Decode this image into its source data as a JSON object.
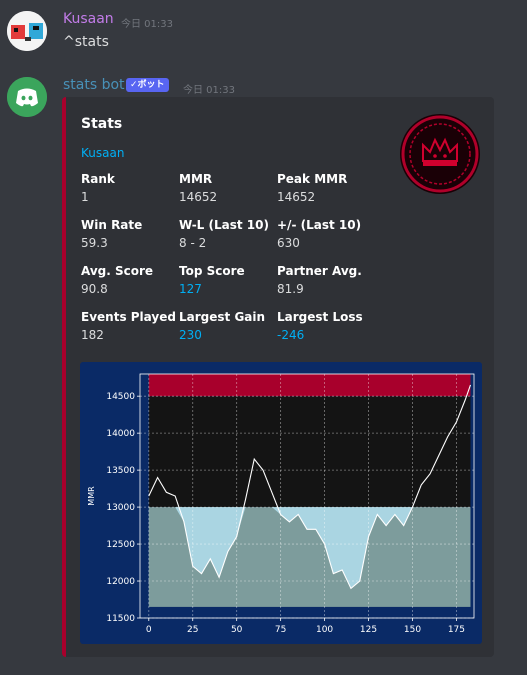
{
  "messages": [
    {
      "username": "Kusaan",
      "timestamp": "今日 01:33",
      "text": "^stats"
    },
    {
      "username": "stats bot",
      "bot_tag": "✓ボット",
      "timestamp": "今日 01:33"
    }
  ],
  "colors": {
    "user1": "#c27ce8",
    "bot": "#4891b8",
    "accent": "#a8002c",
    "link": "#00aff4"
  },
  "embed": {
    "title": "Stats",
    "author": "Kusaan",
    "fields": [
      {
        "name": "Rank",
        "value": "1"
      },
      {
        "name": "MMR",
        "value": "14652"
      },
      {
        "name": "Peak MMR",
        "value": "14652"
      },
      {
        "name": "Win Rate",
        "value": "59.3"
      },
      {
        "name": "W-L (Last 10)",
        "value": "8 - 2"
      },
      {
        "name": "+/- (Last 10)",
        "value": "630"
      },
      {
        "name": "Avg. Score",
        "value": "90.8"
      },
      {
        "name": "Top Score",
        "value": "127"
      },
      {
        "name": "Partner Avg.",
        "value": "81.9"
      },
      {
        "name": "Events Played",
        "value": "182"
      },
      {
        "name": "Largest Gain",
        "value": "230"
      },
      {
        "name": "Largest Loss",
        "value": "-246"
      }
    ]
  },
  "chart_data": {
    "type": "line",
    "title": "",
    "xlabel": "",
    "ylabel": "MMR",
    "xlim": [
      -5,
      185
    ],
    "ylim": [
      11500,
      14800
    ],
    "x_ticks": [
      0,
      25,
      50,
      75,
      100,
      125,
      150,
      175
    ],
    "y_ticks": [
      11500,
      12000,
      12500,
      13000,
      13500,
      14000,
      14500
    ],
    "grid": true,
    "bands": [
      {
        "from": 11650,
        "to": 13000,
        "color": "#7d9c9c"
      },
      {
        "from": 13000,
        "to": 14500,
        "color": "#141414"
      },
      {
        "from": 14500,
        "to": 14800,
        "color": "#a8002c"
      }
    ],
    "fill_color": "#add8e6",
    "line_color": "#ffffff",
    "series": [
      {
        "x": [
          0,
          5,
          10,
          15,
          20,
          25,
          30,
          35,
          40,
          45,
          50,
          55,
          60,
          65,
          70,
          75,
          80,
          85,
          90,
          95,
          100,
          105,
          110,
          115,
          120,
          125,
          130,
          135,
          140,
          145,
          150,
          155,
          160,
          165,
          170,
          175,
          180,
          183
        ],
        "y": [
          13150,
          13400,
          13200,
          13150,
          12800,
          12200,
          12100,
          12300,
          12050,
          12400,
          12600,
          13100,
          13650,
          13500,
          13200,
          12900,
          12800,
          12900,
          12700,
          12700,
          12500,
          12100,
          12150,
          11900,
          12000,
          12600,
          12900,
          12750,
          12900,
          12750,
          13000,
          13300,
          13450,
          13700,
          13950,
          14150,
          14450,
          14652
        ]
      }
    ]
  }
}
